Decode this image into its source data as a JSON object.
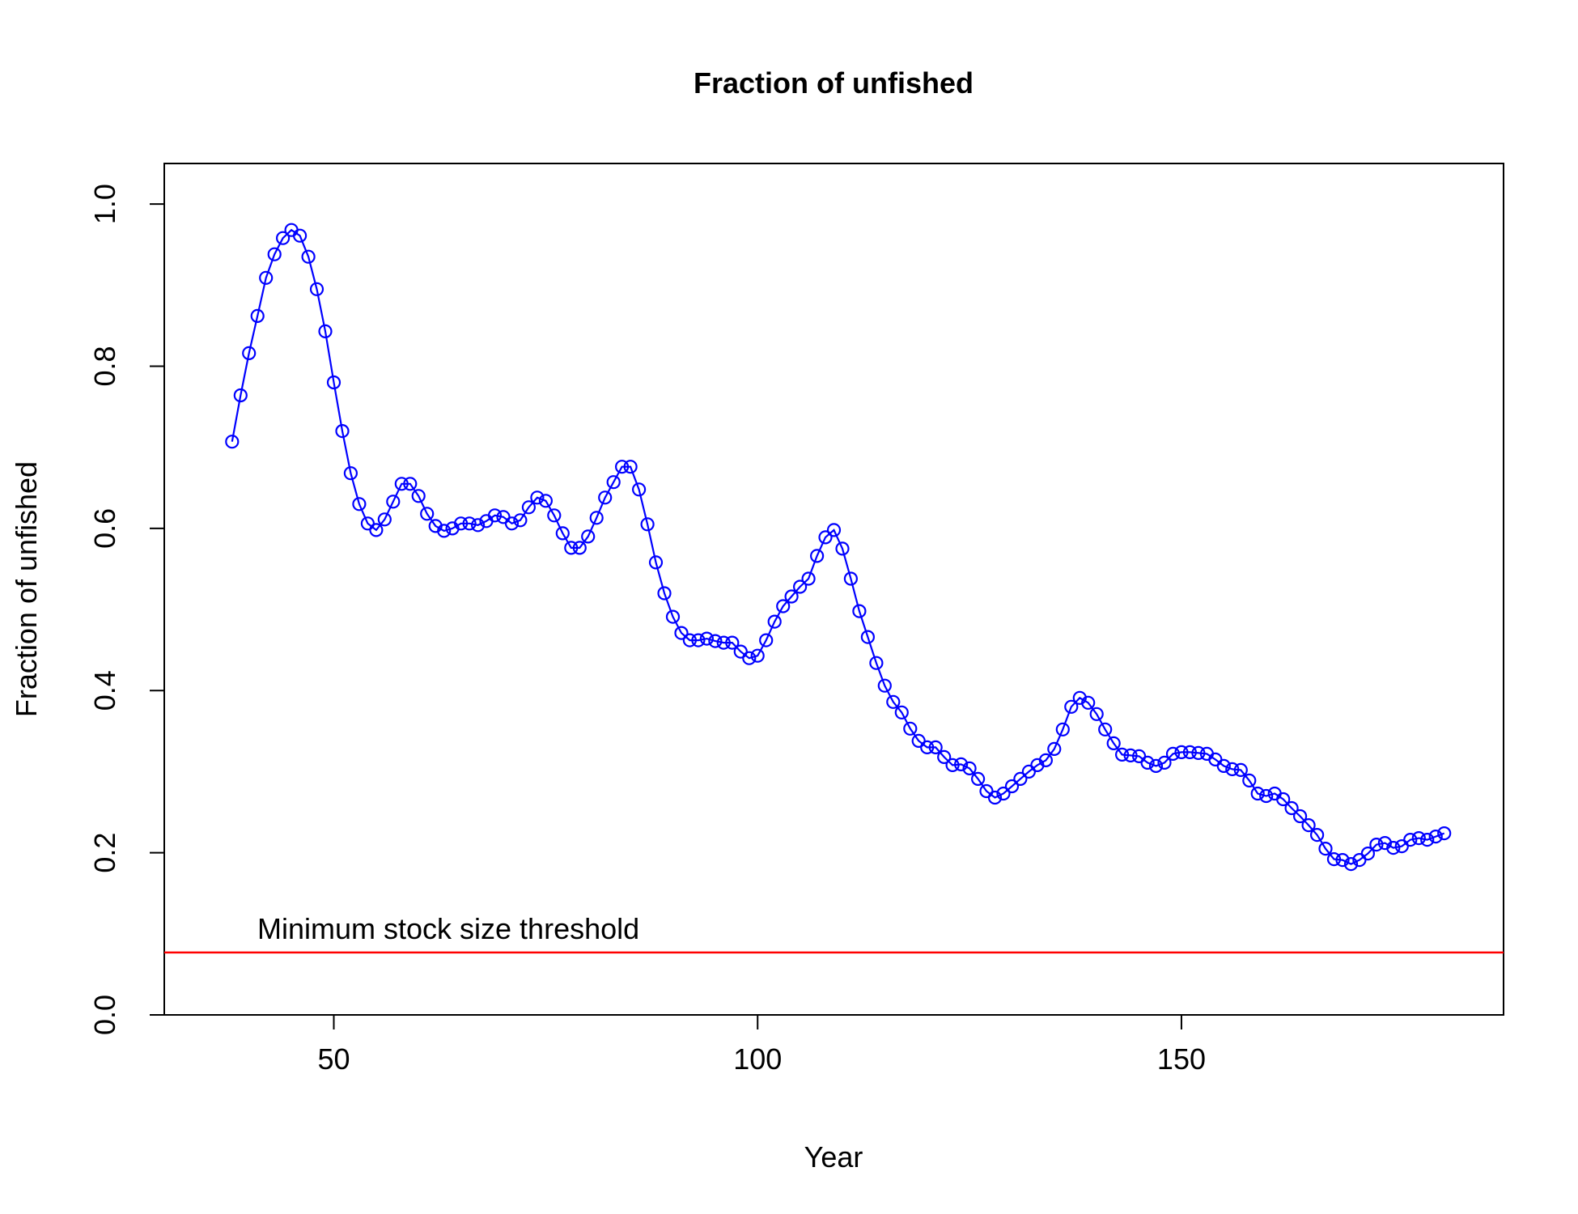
{
  "chart_data": {
    "type": "line",
    "title": "Fraction of unfished",
    "xlabel": "Year",
    "ylabel": "Fraction of unfished",
    "xlim": [
      30,
      188
    ],
    "ylim": [
      0,
      1.05
    ],
    "xticks": [
      50,
      100,
      150
    ],
    "yticks": [
      0.0,
      0.2,
      0.4,
      0.6,
      0.8,
      1.0
    ],
    "ytick_labels": [
      "0.0",
      "0.2",
      "0.4",
      "0.6",
      "0.8",
      "1.0"
    ],
    "grid": false,
    "legend": "none",
    "series": [
      {
        "color": "#0000ff",
        "marker": "open-circle",
        "x": [
          38,
          39,
          40,
          41,
          42,
          43,
          44,
          45,
          46,
          47,
          48,
          49,
          50,
          51,
          52,
          53,
          54,
          55,
          56,
          57,
          58,
          59,
          60,
          61,
          62,
          63,
          64,
          65,
          66,
          67,
          68,
          69,
          70,
          71,
          72,
          73,
          74,
          75,
          76,
          77,
          78,
          79,
          80,
          81,
          82,
          83,
          84,
          85,
          86,
          87,
          88,
          89,
          90,
          91,
          92,
          93,
          94,
          95,
          96,
          97,
          98,
          99,
          100,
          101,
          102,
          103,
          104,
          105,
          106,
          107,
          108,
          109,
          110,
          111,
          112,
          113,
          114,
          115,
          116,
          117,
          118,
          119,
          120,
          121,
          122,
          123,
          124,
          125,
          126,
          127,
          128,
          129,
          130,
          131,
          132,
          133,
          134,
          135,
          136,
          137,
          138,
          139,
          140,
          141,
          142,
          143,
          144,
          145,
          146,
          147,
          148,
          149,
          150,
          151,
          152,
          153,
          154,
          155,
          156,
          157,
          158,
          159,
          160,
          161,
          162,
          163,
          164,
          165,
          166,
          167,
          168,
          169,
          170,
          171,
          172,
          173,
          174,
          175,
          176,
          177,
          178,
          179,
          180,
          181
        ],
        "y": [
          0.707,
          0.764,
          0.816,
          0.862,
          0.909,
          0.938,
          0.958,
          0.968,
          0.961,
          0.935,
          0.895,
          0.843,
          0.78,
          0.72,
          0.668,
          0.63,
          0.606,
          0.598,
          0.611,
          0.633,
          0.655,
          0.655,
          0.64,
          0.618,
          0.603,
          0.597,
          0.6,
          0.606,
          0.606,
          0.604,
          0.609,
          0.616,
          0.614,
          0.606,
          0.61,
          0.626,
          0.638,
          0.634,
          0.616,
          0.594,
          0.576,
          0.576,
          0.59,
          0.613,
          0.638,
          0.657,
          0.676,
          0.676,
          0.648,
          0.605,
          0.558,
          0.52,
          0.491,
          0.471,
          0.462,
          0.462,
          0.464,
          0.461,
          0.459,
          0.459,
          0.448,
          0.44,
          0.443,
          0.462,
          0.485,
          0.504,
          0.516,
          0.528,
          0.538,
          0.566,
          0.589,
          0.598,
          0.575,
          0.538,
          0.498,
          0.466,
          0.434,
          0.406,
          0.386,
          0.373,
          0.353,
          0.338,
          0.33,
          0.33,
          0.318,
          0.308,
          0.309,
          0.304,
          0.291,
          0.276,
          0.268,
          0.273,
          0.282,
          0.291,
          0.3,
          0.308,
          0.314,
          0.328,
          0.352,
          0.38,
          0.391,
          0.385,
          0.371,
          0.352,
          0.335,
          0.321,
          0.32,
          0.319,
          0.311,
          0.307,
          0.311,
          0.322,
          0.324,
          0.324,
          0.323,
          0.322,
          0.315,
          0.307,
          0.303,
          0.302,
          0.289,
          0.273,
          0.27,
          0.273,
          0.266,
          0.255,
          0.245,
          0.234,
          0.222,
          0.205,
          0.192,
          0.191,
          0.186,
          0.191,
          0.199,
          0.21,
          0.212,
          0.206,
          0.208,
          0.216,
          0.218,
          0.216,
          0.22,
          0.224
        ]
      }
    ],
    "reference_line": {
      "y": 0.077,
      "color": "#ff0000",
      "label": "Minimum stock size threshold"
    }
  }
}
